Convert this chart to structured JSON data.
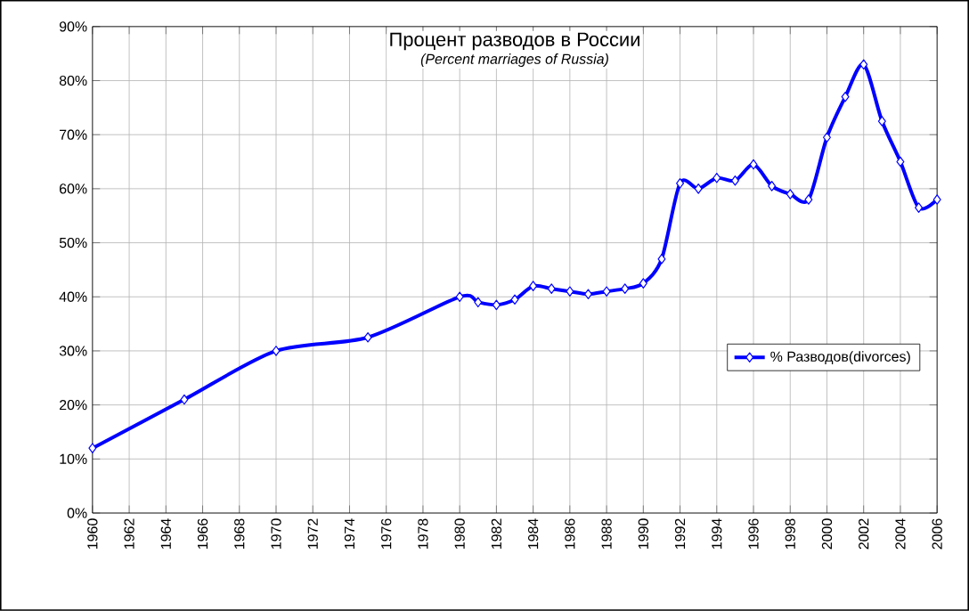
{
  "chart_data": {
    "type": "line",
    "title": "Процент разводов в России",
    "subtitle": "*(Percent marriages of Russia)*",
    "x": [
      1960,
      1965,
      1970,
      1975,
      1980,
      1981,
      1982,
      1983,
      1984,
      1985,
      1986,
      1987,
      1988,
      1989,
      1990,
      1991,
      1992,
      1993,
      1994,
      1995,
      1996,
      1997,
      1998,
      1999,
      2000,
      2001,
      2002,
      2003,
      2004,
      2005,
      2006
    ],
    "series": [
      {
        "name": "% Разводов(divorces)",
        "color": "#0000ff",
        "values": [
          12,
          21,
          30,
          32.5,
          40,
          39,
          38.5,
          39.5,
          42,
          41.5,
          41,
          40.5,
          41,
          41.5,
          42.5,
          47,
          61,
          60,
          62,
          61.5,
          64.5,
          60.5,
          59,
          58,
          69.5,
          77,
          83,
          72.5,
          65,
          56.5,
          58
        ]
      }
    ],
    "xlim": [
      1960,
      2006
    ],
    "xticks": [
      1960,
      1962,
      1964,
      1966,
      1968,
      1970,
      1972,
      1974,
      1976,
      1978,
      1980,
      1982,
      1984,
      1986,
      1988,
      1990,
      1992,
      1994,
      1996,
      1998,
      2000,
      2002,
      2004,
      2006
    ],
    "ylim": [
      0,
      90
    ],
    "yticks": [
      {
        "value": 0,
        "label": "0%"
      },
      {
        "value": 10,
        "label": "10%"
      },
      {
        "value": 20,
        "label": "20%"
      },
      {
        "value": 30,
        "label": "30%"
      },
      {
        "value": 40,
        "label": "40%"
      },
      {
        "value": 50,
        "label": "50%"
      },
      {
        "value": 60,
        "label": "60%"
      },
      {
        "value": 70,
        "label": "70%"
      },
      {
        "value": 80,
        "label": "80%"
      },
      {
        "value": 90,
        "label": "90%"
      }
    ],
    "grid": true,
    "legend": "right",
    "marker": "diamond",
    "line_style": "solid"
  }
}
